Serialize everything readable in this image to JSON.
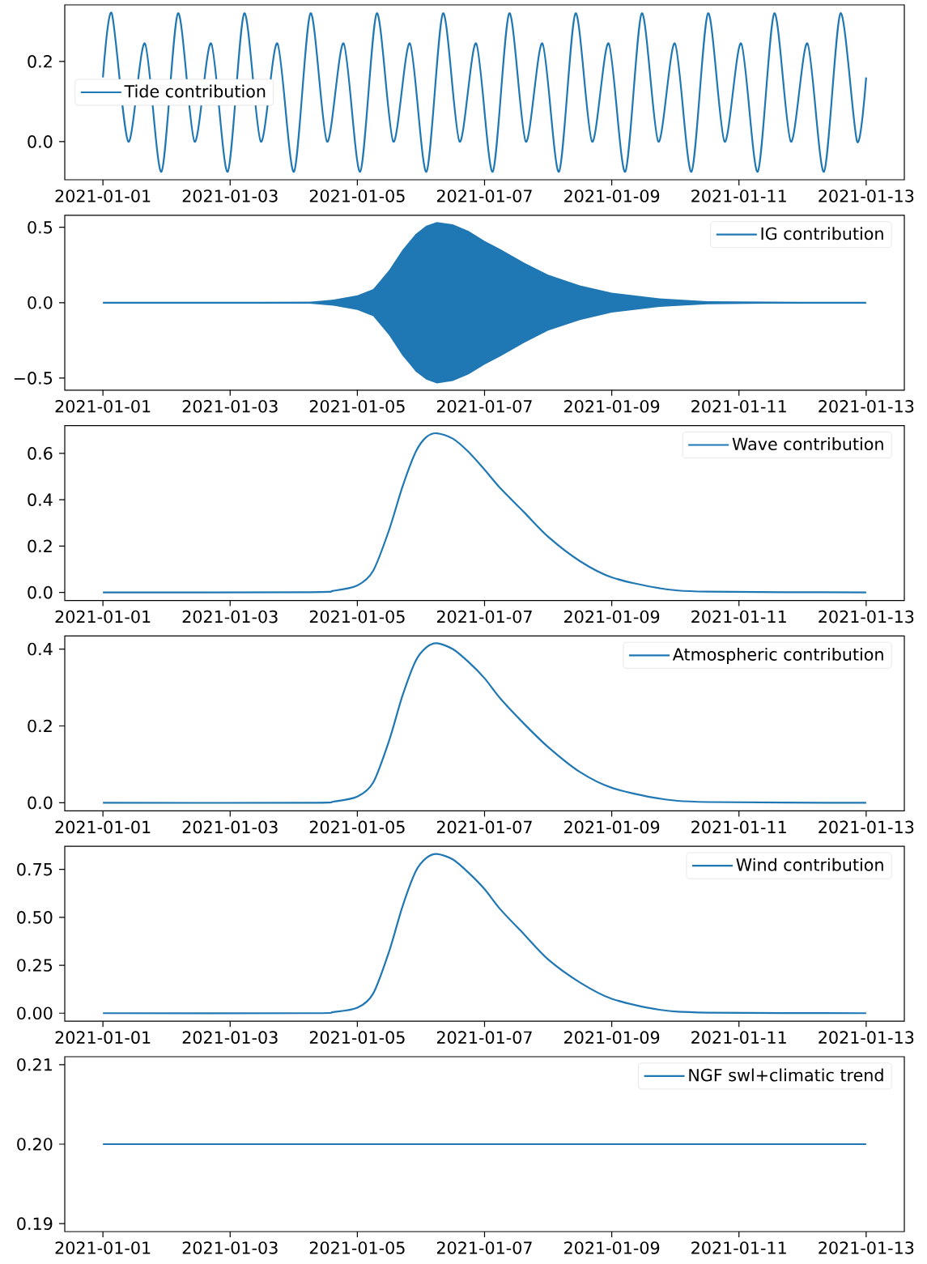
{
  "chart_data": [
    {
      "type": "line",
      "xlim": [
        "2020-12-31T09:36",
        "2021-01-13T14:24"
      ],
      "ylim": [
        -0.095,
        0.341
      ],
      "legend": "left",
      "xticks": [
        "2021-01-01",
        "2021-01-03",
        "2021-01-05",
        "2021-01-07",
        "2021-01-09",
        "2021-01-11",
        "2021-01-13"
      ],
      "yticks": [
        {
          "value": 0,
          "label": "0.0"
        },
        {
          "value": 0.2,
          "label": "0.2"
        }
      ],
      "x": [
        "2021-01-01T00:00",
        "2021-01-01T03:20",
        "2021-01-01T09:35",
        "2021-01-01T15:50",
        "2021-01-01T22:05",
        "2021-01-02T04:20",
        "2021-01-02T10:35",
        "2021-01-02T16:50",
        "2021-01-02T23:05",
        "2021-01-03T05:20",
        "2021-01-03T11:35",
        "2021-01-03T17:50",
        "2021-01-04T00:05",
        "2021-01-04T06:20",
        "2021-01-04T12:35",
        "2021-01-04T18:50",
        "2021-01-05T01:05",
        "2021-01-05T07:20",
        "2021-01-05T13:35",
        "2021-01-05T19:50",
        "2021-01-06T02:05",
        "2021-01-06T08:20",
        "2021-01-06T14:35",
        "2021-01-06T20:50",
        "2021-01-07T03:05",
        "2021-01-07T09:20",
        "2021-01-07T15:35",
        "2021-01-07T21:50",
        "2021-01-08T04:05",
        "2021-01-08T10:20",
        "2021-01-08T16:35",
        "2021-01-08T22:50",
        "2021-01-09T05:05",
        "2021-01-09T11:20",
        "2021-01-09T17:35",
        "2021-01-09T23:50",
        "2021-01-10T06:05",
        "2021-01-10T12:20",
        "2021-01-10T18:35",
        "2021-01-11T00:50",
        "2021-01-11T07:05",
        "2021-01-11T13:20",
        "2021-01-11T19:35",
        "2021-01-12T01:50",
        "2021-01-12T08:05",
        "2021-01-12T14:20",
        "2021-01-12T20:35",
        "2021-01-13T00:00"
      ],
      "series": [
        {
          "name": "Tide contribution",
          "color": "#1f77b4",
          "values": [
            0.16,
            0.32,
            0.0,
            0.245,
            -0.075,
            0.32,
            0.0,
            0.245,
            -0.075,
            0.32,
            0.0,
            0.245,
            -0.075,
            0.32,
            0.0,
            0.245,
            -0.075,
            0.32,
            0.0,
            0.245,
            -0.075,
            0.32,
            0.0,
            0.245,
            -0.075,
            0.32,
            0.0,
            0.245,
            -0.075,
            0.32,
            0.0,
            0.245,
            -0.075,
            0.32,
            0.0,
            0.245,
            -0.075,
            0.32,
            0.0,
            0.245,
            -0.075,
            0.32,
            0.0,
            0.245,
            -0.075,
            0.32,
            0.0,
            0.16
          ]
        }
      ]
    },
    {
      "type": "line",
      "xlim": [
        "2020-12-31T09:36",
        "2021-01-13T14:24"
      ],
      "ylim": [
        -0.58,
        0.58
      ],
      "legend": "top right",
      "xticks": [
        "2021-01-01",
        "2021-01-03",
        "2021-01-05",
        "2021-01-07",
        "2021-01-09",
        "2021-01-11",
        "2021-01-13"
      ],
      "yticks": [
        {
          "value": -0.5,
          "label": "−0.5"
        },
        {
          "value": 0,
          "label": "0.0"
        },
        {
          "value": 0.5,
          "label": "0.5"
        }
      ],
      "x": [
        "2021-01-01T00:00",
        "2021-01-04T06:00",
        "2021-01-04T15:00",
        "2021-01-05T00:00",
        "2021-01-05T06:00",
        "2021-01-05T12:00",
        "2021-01-05T17:00",
        "2021-01-05T22:00",
        "2021-01-06T02:00",
        "2021-01-06T06:00",
        "2021-01-06T12:00",
        "2021-01-06T18:00",
        "2021-01-07T00:00",
        "2021-01-07T06:00",
        "2021-01-07T15:00",
        "2021-01-08T00:00",
        "2021-01-08T12:00",
        "2021-01-09T00:00",
        "2021-01-09T18:00",
        "2021-01-10T12:00",
        "2021-01-13T00:00"
      ],
      "series": [
        {
          "name": "IG contribution",
          "color": "#1f77b4",
          "values": [
            0,
            0,
            0,
            0,
            0,
            0,
            0,
            0,
            0,
            0,
            0,
            0,
            0,
            0,
            0,
            0,
            0,
            0,
            0,
            0,
            0
          ],
          "upper": [
            0,
            0.006,
            0.02,
            0.048,
            0.09,
            0.216,
            0.35,
            0.456,
            0.51,
            0.535,
            0.52,
            0.475,
            0.41,
            0.355,
            0.265,
            0.185,
            0.115,
            0.066,
            0.028,
            0.01,
            0
          ],
          "lower": [
            0,
            -0.006,
            -0.02,
            -0.048,
            -0.09,
            -0.216,
            -0.35,
            -0.456,
            -0.51,
            -0.535,
            -0.52,
            -0.475,
            -0.41,
            -0.355,
            -0.265,
            -0.185,
            -0.115,
            -0.066,
            -0.028,
            -0.01,
            0
          ]
        }
      ]
    },
    {
      "type": "line",
      "xlim": [
        "2020-12-31T09:36",
        "2021-01-13T14:24"
      ],
      "ylim": [
        -0.035,
        0.72
      ],
      "legend": "top right",
      "xticks": [
        "2021-01-01",
        "2021-01-03",
        "2021-01-05",
        "2021-01-07",
        "2021-01-09",
        "2021-01-11",
        "2021-01-13"
      ],
      "yticks": [
        {
          "value": 0,
          "label": "0.0"
        },
        {
          "value": 0.2,
          "label": "0.2"
        },
        {
          "value": 0.4,
          "label": "0.4"
        },
        {
          "value": 0.6,
          "label": "0.6"
        }
      ],
      "x": [
        "2021-01-01T00:00",
        "2021-01-04T06:00",
        "2021-01-04T15:00",
        "2021-01-05T00:00",
        "2021-01-05T06:00",
        "2021-01-05T12:00",
        "2021-01-05T17:00",
        "2021-01-05T22:00",
        "2021-01-06T02:00",
        "2021-01-06T06:00",
        "2021-01-06T12:00",
        "2021-01-06T18:00",
        "2021-01-07T00:00",
        "2021-01-07T06:00",
        "2021-01-07T15:00",
        "2021-01-08T00:00",
        "2021-01-08T12:00",
        "2021-01-09T00:00",
        "2021-01-09T18:00",
        "2021-01-10T12:00",
        "2021-01-13T00:00"
      ],
      "series": [
        {
          "name": "Wave contribution",
          "color": "#1f77b4",
          "values": [
            0,
            0.001,
            0.007,
            0.03,
            0.094,
            0.27,
            0.455,
            0.606,
            0.67,
            0.687,
            0.664,
            0.606,
            0.53,
            0.449,
            0.345,
            0.24,
            0.135,
            0.065,
            0.018,
            0.003,
            0
          ]
        }
      ]
    },
    {
      "type": "line",
      "xlim": [
        "2020-12-31T09:36",
        "2021-01-13T14:24"
      ],
      "ylim": [
        -0.021,
        0.434
      ],
      "legend": "top right",
      "xticks": [
        "2021-01-01",
        "2021-01-03",
        "2021-01-05",
        "2021-01-07",
        "2021-01-09",
        "2021-01-11",
        "2021-01-13"
      ],
      "yticks": [
        {
          "value": 0,
          "label": "0.0"
        },
        {
          "value": 0.2,
          "label": "0.2"
        },
        {
          "value": 0.4,
          "label": "0.4"
        }
      ],
      "x": [
        "2021-01-01T00:00",
        "2021-01-04T06:00",
        "2021-01-04T15:00",
        "2021-01-05T00:00",
        "2021-01-05T06:00",
        "2021-01-05T12:00",
        "2021-01-05T17:00",
        "2021-01-05T22:00",
        "2021-01-06T02:00",
        "2021-01-06T06:00",
        "2021-01-06T12:00",
        "2021-01-06T18:00",
        "2021-01-07T00:00",
        "2021-01-07T06:00",
        "2021-01-07T15:00",
        "2021-01-08T00:00",
        "2021-01-08T12:00",
        "2021-01-09T00:00",
        "2021-01-09T18:00",
        "2021-01-10T12:00",
        "2021-01-13T00:00"
      ],
      "series": [
        {
          "name": "Atmospheric contribution",
          "color": "#1f77b4",
          "values": [
            0,
            0,
            0.003,
            0.016,
            0.053,
            0.162,
            0.278,
            0.369,
            0.404,
            0.415,
            0.4,
            0.366,
            0.324,
            0.271,
            0.205,
            0.145,
            0.08,
            0.039,
            0.011,
            0.002,
            0
          ]
        }
      ]
    },
    {
      "type": "line",
      "xlim": [
        "2020-12-31T09:36",
        "2021-01-13T14:24"
      ],
      "ylim": [
        -0.042,
        0.87
      ],
      "legend": "top right",
      "xticks": [
        "2021-01-01",
        "2021-01-03",
        "2021-01-05",
        "2021-01-07",
        "2021-01-09",
        "2021-01-11",
        "2021-01-13"
      ],
      "yticks": [
        {
          "value": 0,
          "label": "0.00"
        },
        {
          "value": 0.25,
          "label": "0.25"
        },
        {
          "value": 0.5,
          "label": "0.50"
        },
        {
          "value": 0.75,
          "label": "0.75"
        }
      ],
      "x": [
        "2021-01-01T00:00",
        "2021-01-04T06:00",
        "2021-01-04T15:00",
        "2021-01-05T00:00",
        "2021-01-05T06:00",
        "2021-01-05T12:00",
        "2021-01-05T17:00",
        "2021-01-05T22:00",
        "2021-01-06T02:00",
        "2021-01-06T06:00",
        "2021-01-06T12:00",
        "2021-01-06T18:00",
        "2021-01-07T00:00",
        "2021-01-07T06:00",
        "2021-01-07T15:00",
        "2021-01-08T00:00",
        "2021-01-08T12:00",
        "2021-01-09T00:00",
        "2021-01-09T18:00",
        "2021-01-10T12:00",
        "2021-01-13T00:00"
      ],
      "series": [
        {
          "name": "Wind contribution",
          "color": "#1f77b4",
          "values": [
            0,
            0,
            0.006,
            0.028,
            0.103,
            0.322,
            0.555,
            0.739,
            0.809,
            0.83,
            0.802,
            0.732,
            0.647,
            0.541,
            0.41,
            0.28,
            0.16,
            0.075,
            0.018,
            0.003,
            0
          ]
        }
      ]
    },
    {
      "type": "line",
      "xlim": [
        "2020-12-31T09:36",
        "2021-01-13T14:24"
      ],
      "ylim": [
        0.189,
        0.211
      ],
      "legend": "top right",
      "xticks": [
        "2021-01-01",
        "2021-01-03",
        "2021-01-05",
        "2021-01-07",
        "2021-01-09",
        "2021-01-11",
        "2021-01-13"
      ],
      "yticks": [
        {
          "value": 0.19,
          "label": "0.19"
        },
        {
          "value": 0.2,
          "label": "0.20"
        },
        {
          "value": 0.21,
          "label": "0.21"
        }
      ],
      "x": [
        "2021-01-01T00:00",
        "2021-01-13T00:00"
      ],
      "series": [
        {
          "name": "NGF swl+climatic trend",
          "color": "#1f77b4",
          "values": [
            0.2,
            0.2
          ]
        }
      ]
    }
  ]
}
